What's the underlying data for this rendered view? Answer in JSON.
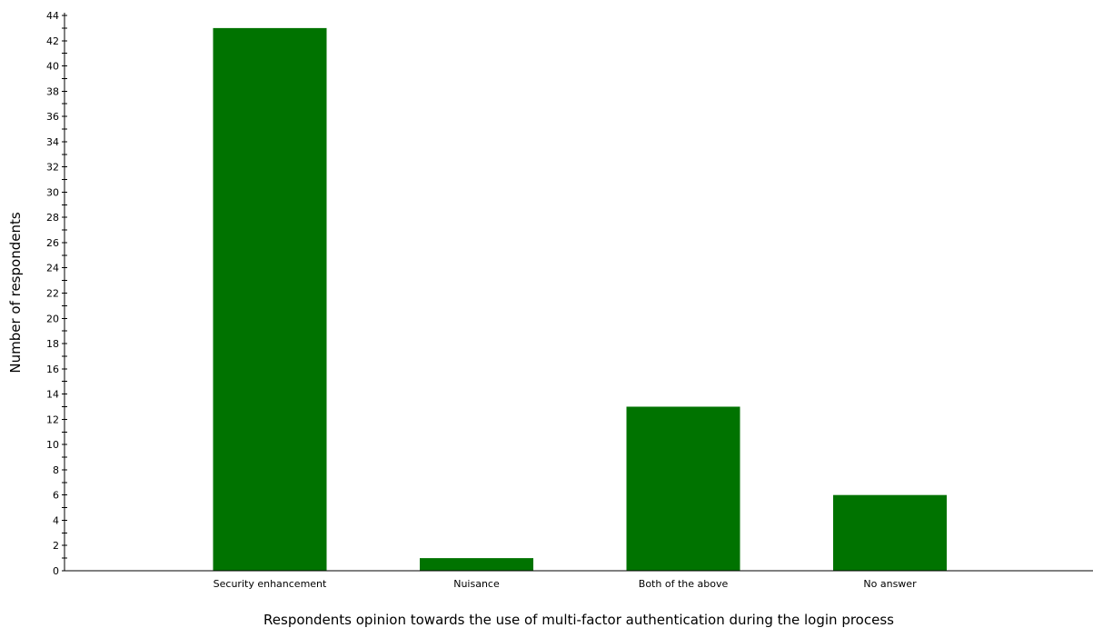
{
  "chart_data": {
    "type": "bar",
    "categories": [
      "Security enhancement",
      "Nuisance",
      "Both of the above",
      "No answer"
    ],
    "values": [
      43,
      1,
      13,
      6
    ],
    "xlabel": "Respondents opinion towards the use of multi-factor authentication during the login process",
    "ylabel": "Number of respondents",
    "ylim": [
      0,
      44
    ],
    "yticks": [
      0,
      2,
      4,
      6,
      8,
      10,
      12,
      14,
      16,
      18,
      20,
      22,
      24,
      26,
      28,
      30,
      32,
      34,
      36,
      38,
      40,
      42,
      44
    ],
    "grid": false,
    "bar_color": "#007300"
  }
}
